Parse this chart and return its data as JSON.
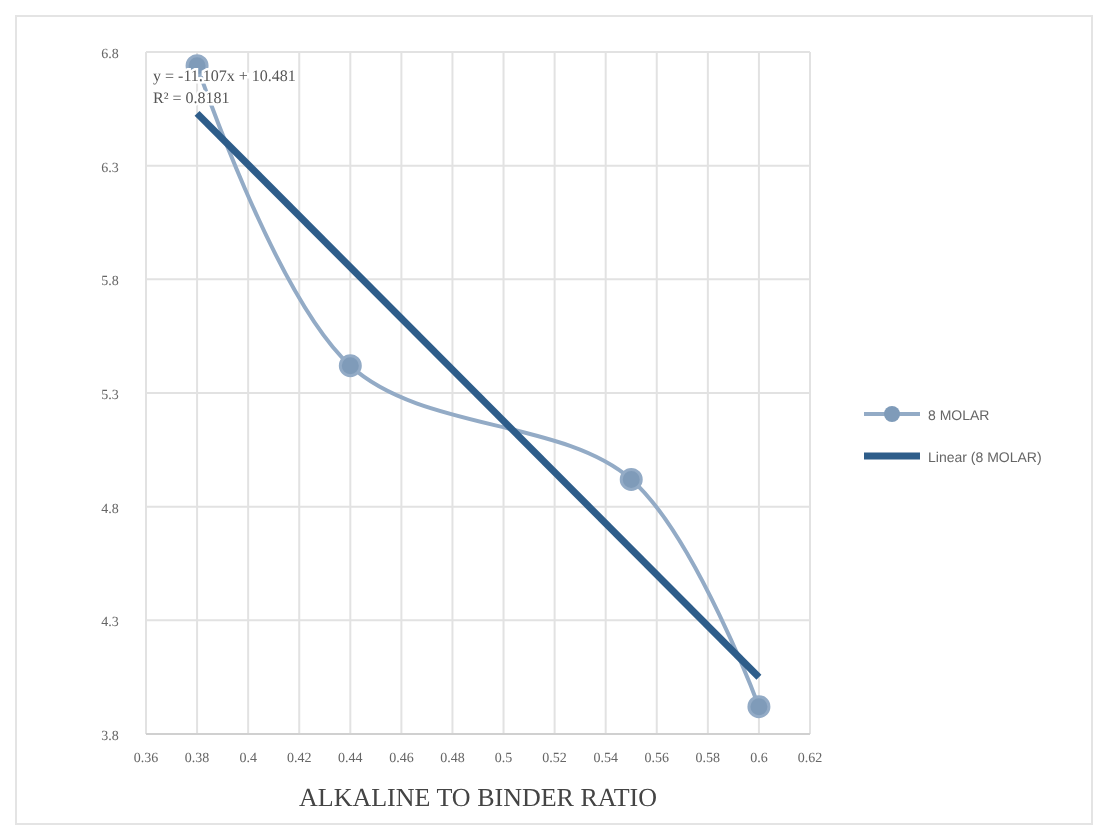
{
  "chart_data": {
    "type": "line",
    "xlabel": "ALKALINE TO BINDER RATIO",
    "xlim": [
      0.36,
      0.62
    ],
    "xticks": [
      0.36,
      0.38,
      0.4,
      0.42,
      0.44,
      0.46,
      0.48,
      0.5,
      0.52,
      0.54,
      0.56,
      0.58,
      0.6,
      0.62
    ],
    "ylim": [
      3.8,
      6.8
    ],
    "yticks": [
      3.8,
      4.3,
      4.8,
      5.3,
      5.8,
      6.3,
      6.8
    ],
    "series": [
      {
        "name": "8 MOLAR",
        "color": "#93abc6",
        "x": [
          0.38,
          0.44,
          0.55,
          0.6
        ],
        "values": [
          6.74,
          5.42,
          4.92,
          3.92
        ],
        "marker": "circle"
      },
      {
        "name": "Linear (8 MOLAR)",
        "type": "line",
        "color": "#2e5d8a",
        "x": [
          0.38,
          0.6
        ],
        "values": [
          6.53,
          4.05
        ],
        "marker": "none"
      }
    ],
    "annotations": [
      {
        "text": "y = -11.107x + 10.481",
        "x": 0.38,
        "y": 6.53
      },
      {
        "text": "R² = 0.8181",
        "x": 0.38,
        "y": 6.53
      }
    ],
    "grid": true,
    "legend": "right",
    "line_style": "solid"
  }
}
